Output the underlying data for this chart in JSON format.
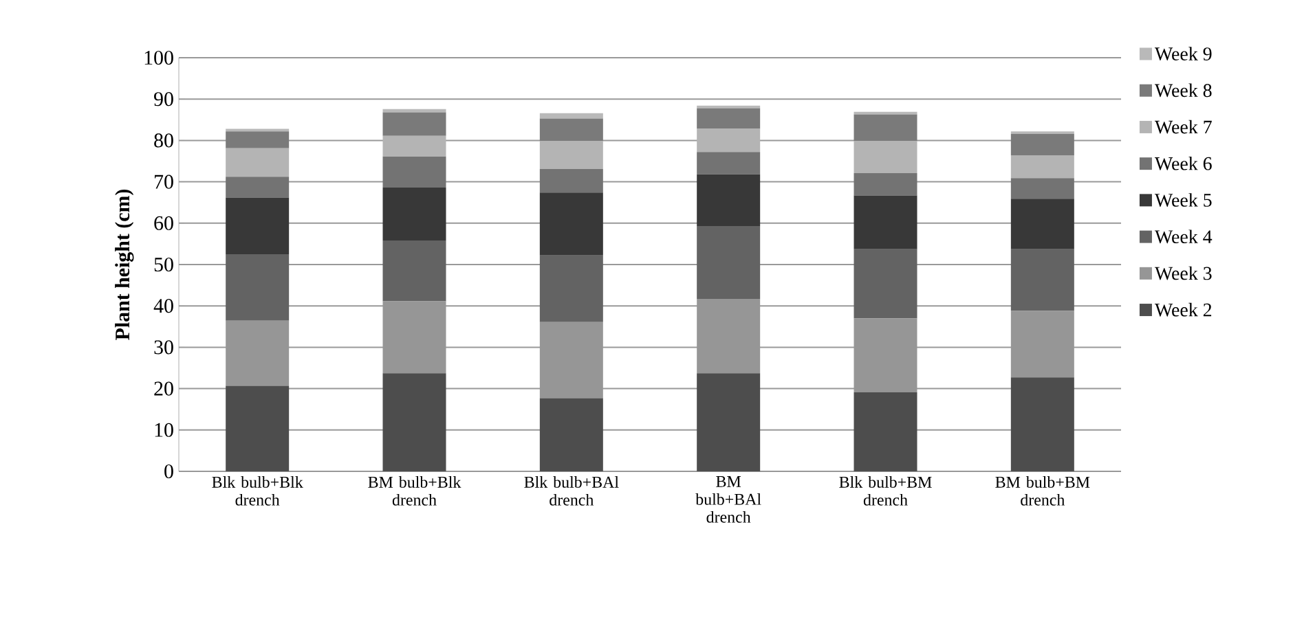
{
  "chart_data": {
    "type": "bar",
    "stacked": true,
    "ylabel": "Plant height (cm)",
    "categories": [
      "Blk bulb+Blk drench",
      "BM bulb+Blk drench",
      "Blk bulb+BAl drench",
      "BM bulb+BAl drench",
      "Blk bulb+BM drench",
      "BM bulb+BM drench"
    ],
    "series": [
      {
        "name": "Week 2",
        "color": "#4d4d4d",
        "values": [
          20.7,
          23.7,
          17.7,
          23.7,
          19.1,
          22.7
        ]
      },
      {
        "name": "Week 3",
        "color": "#969696",
        "values": [
          15.7,
          17.4,
          18.4,
          18.0,
          17.9,
          16.1
        ]
      },
      {
        "name": "Week 4",
        "color": "#636363",
        "values": [
          16.1,
          14.7,
          16.1,
          17.6,
          16.7,
          14.9
        ]
      },
      {
        "name": "Week 5",
        "color": "#383838",
        "values": [
          13.7,
          12.8,
          15.2,
          12.5,
          13.0,
          12.2
        ]
      },
      {
        "name": "Week 6",
        "color": "#737373",
        "values": [
          5.0,
          7.5,
          5.7,
          5.4,
          5.4,
          5.0
        ]
      },
      {
        "name": "Week 7",
        "color": "#b4b4b4",
        "values": [
          6.9,
          5.0,
          6.8,
          5.6,
          7.8,
          5.5
        ]
      },
      {
        "name": "Week 8",
        "color": "#7a7a7a",
        "values": [
          4.1,
          5.7,
          5.4,
          5.0,
          6.4,
          5.2
        ]
      },
      {
        "name": "Week 9",
        "color": "#b9b9b9",
        "values": [
          0.6,
          0.8,
          1.3,
          0.6,
          0.6,
          0.6
        ]
      }
    ],
    "ylim": [
      0,
      100
    ],
    "yticks": [
      0,
      10,
      20,
      30,
      40,
      50,
      60,
      70,
      80,
      90,
      100
    ],
    "grid": "y",
    "legend": "right"
  }
}
